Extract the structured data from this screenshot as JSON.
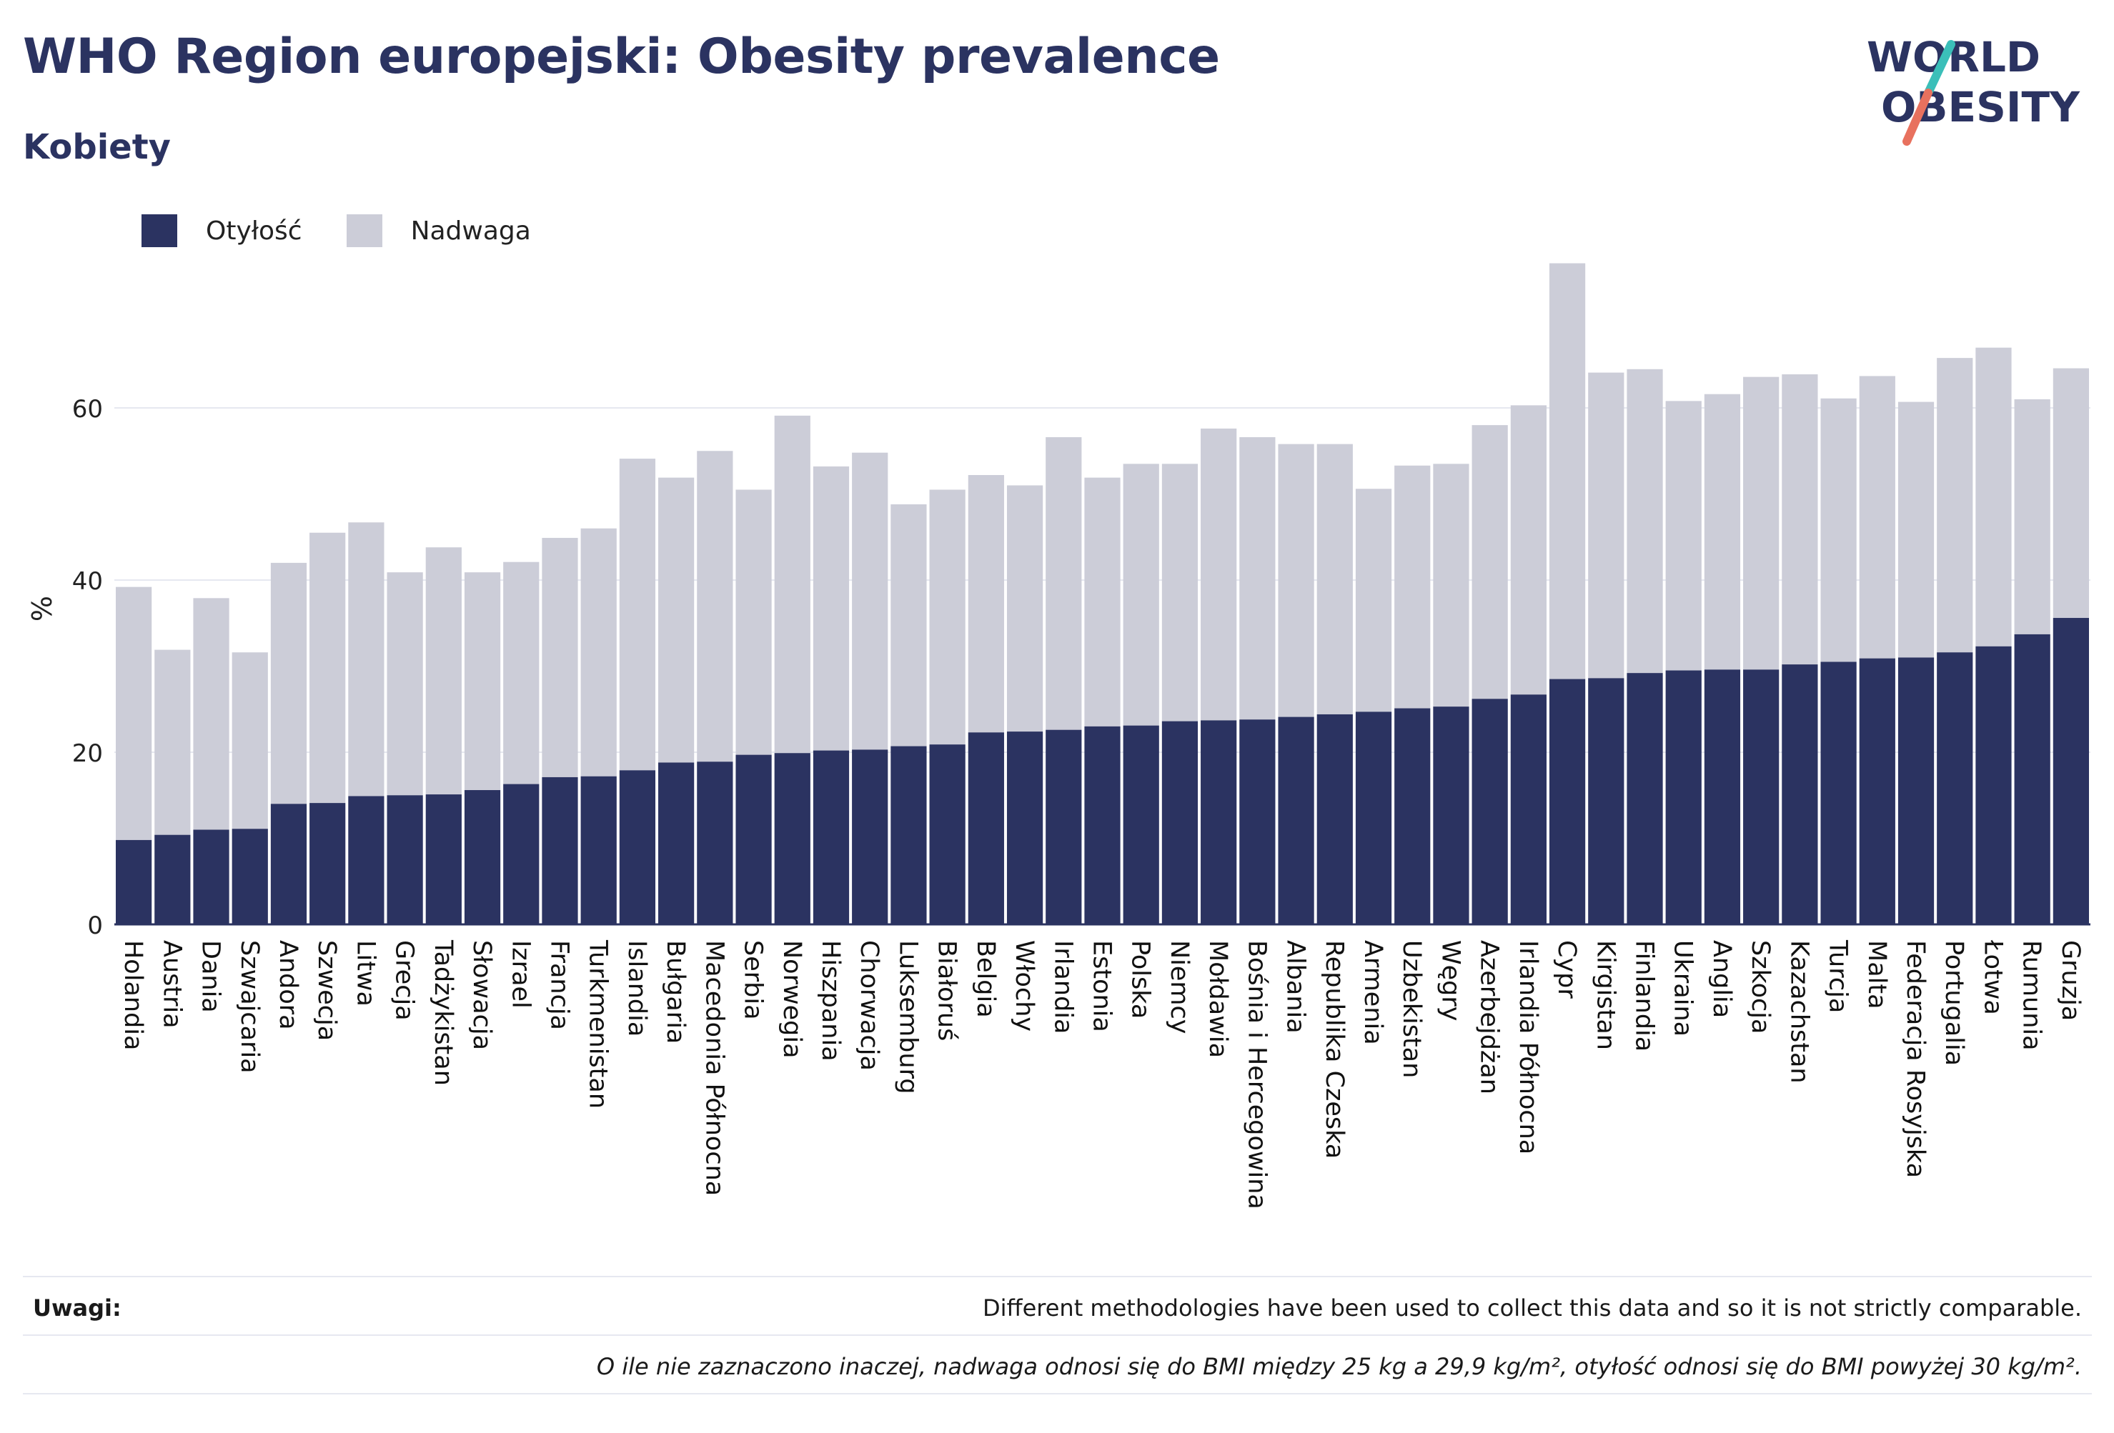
{
  "header": {
    "title": "WHO Region europejski: Obesity prevalence",
    "subtitle": "Kobiety"
  },
  "logo": {
    "line1": "WORLD",
    "line2": "OBESITY"
  },
  "legend": {
    "obesity_label": "Otyłość",
    "overweight_label": "Nadwaga"
  },
  "colors": {
    "obesity": "#2b3361",
    "overweight": "#cccdd8",
    "accent_teal": "#3bbfb9",
    "accent_coral": "#e8715e",
    "grid": "#e6e8f0"
  },
  "notes": {
    "label": "Uwagi:",
    "line1": "Different methodologies have been used to collect this data and so it is not strictly comparable.",
    "line2": "O ile nie zaznaczono inaczej, nadwaga odnosi się do BMI między 25 kg a 29,9 kg/m², otyłość odnosi się do BMI powyżej 30 kg/m²."
  },
  "chart_data": {
    "type": "bar",
    "stacked": true,
    "title": "WHO Region europejski: Obesity prevalence",
    "subtitle": "Kobiety",
    "ylabel": "%",
    "xlabel": "",
    "ylim": [
      0,
      80
    ],
    "yticks": [
      0,
      20,
      40,
      60
    ],
    "grid": true,
    "legend_position": "top-left",
    "categories": [
      "Holandia",
      "Austria",
      "Dania",
      "Szwajcaria",
      "Andora",
      "Szwecja",
      "Litwa",
      "Grecja",
      "Tadżykistan",
      "Słowacja",
      "Izrael",
      "Francja",
      "Turkmenistan",
      "Islandia",
      "Bułgaria",
      "Macedonia Północna",
      "Serbia",
      "Norwegia",
      "Hiszpania",
      "Chorwacja",
      "Luksemburg",
      "Białoruś",
      "Belgia",
      "Włochy",
      "Irlandia",
      "Estonia",
      "Polska",
      "Niemcy",
      "Mołdawia",
      "Bośnia i Hercegowina",
      "Albania",
      "Republika Czeska",
      "Armenia",
      "Uzbekistan",
      "Węgry",
      "Azerbejdżan",
      "Irlandia Północna",
      "Cypr",
      "Kirgistan",
      "Finlandia",
      "Ukraina",
      "Anglia",
      "Szkocja",
      "Kazachstan",
      "Turcja",
      "Malta",
      "Federacja Rosyjska",
      "Portugalia",
      "Łotwa",
      "Rumunia",
      "Gruzja"
    ],
    "series": [
      {
        "name": "Otyłość",
        "values": [
          9.8,
          10.4,
          11.0,
          11.1,
          14.0,
          14.1,
          14.9,
          15.0,
          15.1,
          15.6,
          16.3,
          17.1,
          17.2,
          17.9,
          18.8,
          18.9,
          19.7,
          19.9,
          20.2,
          20.3,
          20.7,
          20.9,
          22.3,
          22.4,
          22.6,
          23.0,
          23.1,
          23.6,
          23.7,
          23.8,
          24.1,
          24.4,
          24.7,
          25.1,
          25.3,
          26.2,
          26.7,
          28.5,
          28.6,
          29.2,
          29.5,
          29.6,
          29.6,
          30.2,
          30.5,
          30.9,
          31.0,
          31.6,
          32.3,
          33.7,
          35.6
        ]
      },
      {
        "name": "Nadwaga",
        "values": [
          29.4,
          21.5,
          26.9,
          20.5,
          28.0,
          31.4,
          31.8,
          25.9,
          28.7,
          25.3,
          25.8,
          27.8,
          28.8,
          36.2,
          33.1,
          36.1,
          30.8,
          39.2,
          33.0,
          34.5,
          28.1,
          29.6,
          29.9,
          28.6,
          34.0,
          28.9,
          30.4,
          29.9,
          33.9,
          32.8,
          31.7,
          31.4,
          25.9,
          28.2,
          28.2,
          31.8,
          33.6,
          48.3,
          35.5,
          35.3,
          31.3,
          32.0,
          34.0,
          33.7,
          30.6,
          32.8,
          29.7,
          34.2,
          34.7,
          27.3,
          29.0
        ]
      }
    ]
  }
}
